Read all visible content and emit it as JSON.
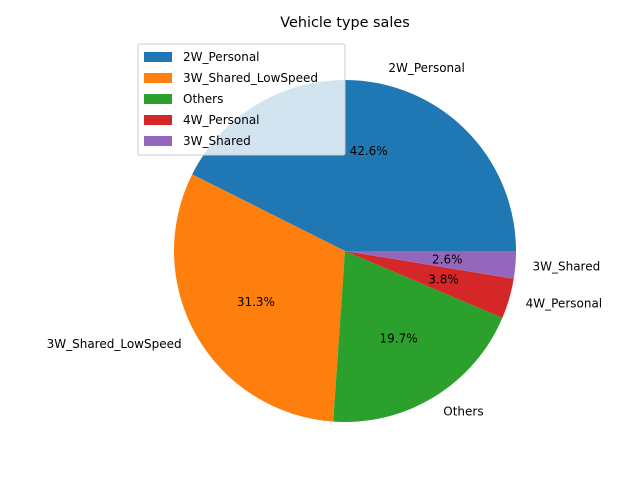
{
  "chart_data": {
    "type": "pie",
    "title": "Vehicle type sales",
    "categories": [
      "2W_Personal",
      "3W_Shared_LowSpeed",
      "Others",
      "4W_Personal",
      "3W_Shared"
    ],
    "values": [
      42.6,
      31.3,
      19.7,
      3.8,
      2.6
    ],
    "percent_labels": [
      "42.6%",
      "31.3%",
      "19.7%",
      "3.8%",
      "2.6%"
    ],
    "colors": [
      "#1f77b4",
      "#ff7f0e",
      "#2ca02c",
      "#d62728",
      "#9467bd"
    ],
    "start_angle_deg": 0,
    "direction": "counterclockwise",
    "legend": {
      "position": "upper-left",
      "entries": [
        "2W_Personal",
        "3W_Shared_LowSpeed",
        "Others",
        "4W_Personal",
        "3W_Shared"
      ]
    }
  }
}
